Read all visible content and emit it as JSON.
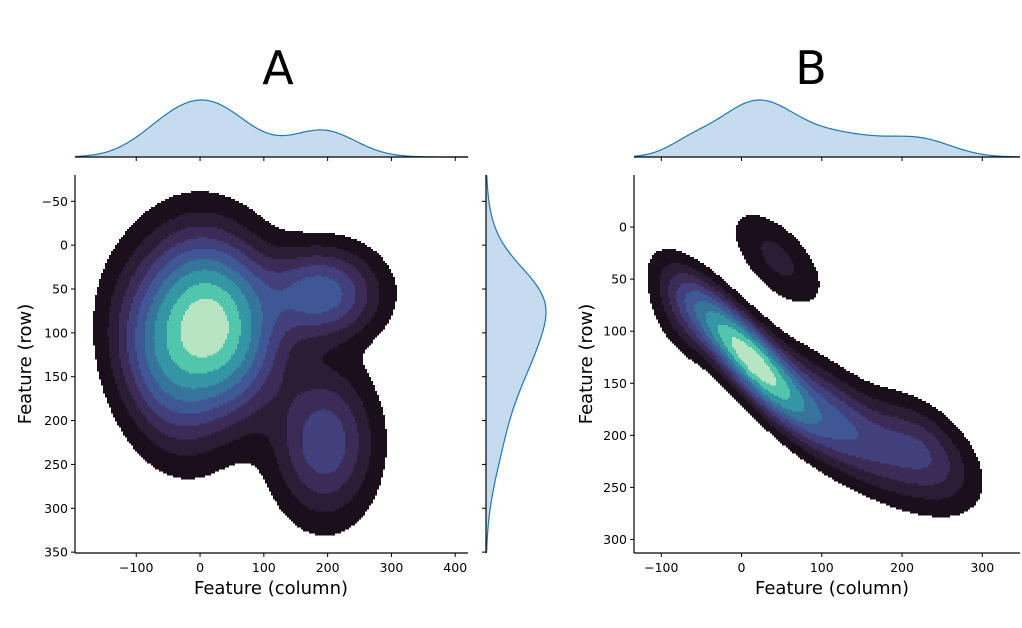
{
  "chart_data": [
    {
      "type": "kde-contour",
      "title": "A",
      "xlabel": "Feature (column)",
      "ylabel": "Feature (row)",
      "xlim": [
        -196,
        420
      ],
      "ylim": [
        351,
        -80
      ],
      "y_inverted": true,
      "xticks": [
        "−100",
        "0",
        "100",
        "200",
        "300",
        "400"
      ],
      "xtick_values": [
        -100,
        0,
        100,
        200,
        300,
        400
      ],
      "yticks": [
        "−50",
        "0",
        "50",
        "100",
        "150",
        "200",
        "250",
        "300",
        "350"
      ],
      "ytick_values": [
        -50,
        0,
        50,
        100,
        150,
        200,
        250,
        300,
        350
      ],
      "colormap": "mako",
      "kde_components": [
        {
          "weight": 1.0,
          "x": 15,
          "y": 90,
          "sx": 62,
          "sy": 60,
          "rho": 0.1
        },
        {
          "weight": 0.42,
          "x": 190,
          "y": 55,
          "sx": 55,
          "sy": 32,
          "rho": 0
        },
        {
          "weight": 0.33,
          "x": 195,
          "y": 225,
          "sx": 48,
          "sy": 52,
          "rho": 0
        },
        {
          "weight": 0.3,
          "x": -60,
          "y": 140,
          "sx": 50,
          "sy": 60,
          "rho": 0.3
        }
      ],
      "marginals": [
        "top",
        "right"
      ],
      "grid": false
    },
    {
      "type": "kde-contour",
      "title": "B",
      "xlabel": "Feature (column)",
      "ylabel": "Feature (row)",
      "xlim": [
        -134,
        347
      ],
      "ylim": [
        313,
        -50
      ],
      "y_inverted": true,
      "xticks": [
        "−100",
        "0",
        "100",
        "200",
        "300"
      ],
      "xtick_values": [
        -100,
        0,
        100,
        200,
        300
      ],
      "yticks": [
        "0",
        "50",
        "100",
        "150",
        "200",
        "250",
        "300"
      ],
      "ytick_values": [
        0,
        50,
        100,
        150,
        200,
        250,
        300
      ],
      "colormap": "mako",
      "kde_components": [
        {
          "weight": 1.0,
          "x": 10,
          "y": 125,
          "sx": 45,
          "sy": 38,
          "rho": 0.85
        },
        {
          "weight": 0.38,
          "x": 115,
          "y": 185,
          "sx": 60,
          "sy": 40,
          "rho": 0.75
        },
        {
          "weight": 0.25,
          "x": 225,
          "y": 215,
          "sx": 40,
          "sy": 30,
          "rho": 0.5
        },
        {
          "weight": 0.13,
          "x": 45,
          "y": 30,
          "sx": 35,
          "sy": 28,
          "rho": 0.6
        },
        {
          "weight": 0.18,
          "x": -65,
          "y": 80,
          "sx": 28,
          "sy": 28,
          "rho": 0.4
        }
      ],
      "marginals": [
        "top"
      ],
      "grid": false
    }
  ],
  "colors": {
    "levels": [
      "#1a0f1b",
      "#2c1d37",
      "#3a2b57",
      "#413f7c",
      "#3f5895",
      "#37749b",
      "#3496a4",
      "#52c6ad",
      "#b7e5c4"
    ],
    "marginal_fill": "#c6dbee",
    "marginal_line": "#1f77b4",
    "axis": "#000000"
  }
}
